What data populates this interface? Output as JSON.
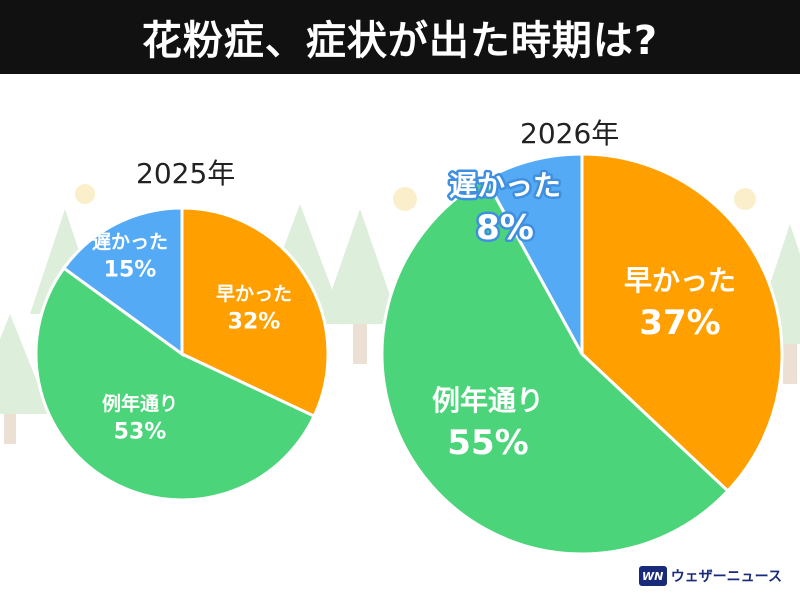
{
  "header": {
    "title": "花粉症、症状が出た時期は?"
  },
  "colors": {
    "early": "#FF9F00",
    "normal": "#4CD47A",
    "late": "#55AAF5",
    "header_bg": "#111111"
  },
  "chart_data": [
    {
      "type": "pie",
      "title": "2025年",
      "categories": [
        "早かった",
        "例年通り",
        "遅かった"
      ],
      "values": [
        32,
        53,
        15
      ],
      "labels": [
        "32%",
        "53%",
        "15%"
      ],
      "colors": [
        "#FF9F00",
        "#4CD47A",
        "#55AAF5"
      ]
    },
    {
      "type": "pie",
      "title": "2026年",
      "categories": [
        "早かった",
        "例年通り",
        "遅かった"
      ],
      "values": [
        37,
        55,
        8
      ],
      "labels": [
        "37%",
        "55%",
        "8%"
      ],
      "colors": [
        "#FF9F00",
        "#4CD47A",
        "#55AAF5"
      ]
    }
  ],
  "brand": {
    "logo_icon": "wn-logo-icon",
    "name": "ウェザーニュース"
  }
}
